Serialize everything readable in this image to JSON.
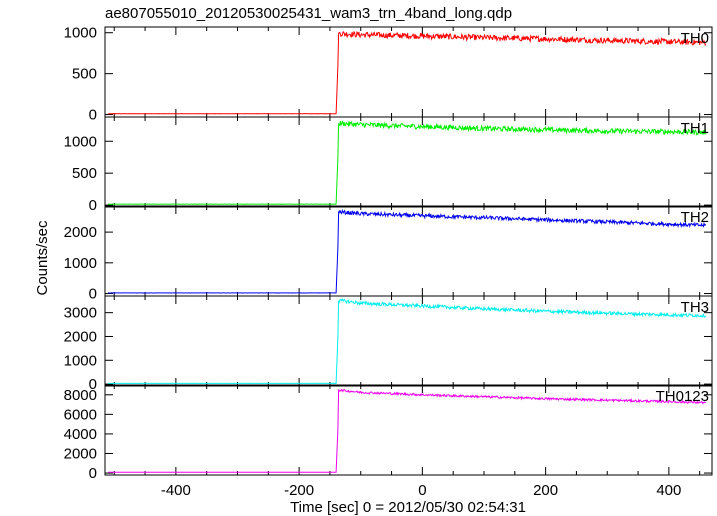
{
  "chart_data": {
    "type": "line",
    "title": "ae807055010_20120530025431_wam3_trn_4band_long.qdp",
    "xlabel": "Time [sec] 0 = 2012/05/30 02:54:31",
    "ylabel": "Counts/sec",
    "xlim": [
      -515,
      470
    ],
    "xticks": [
      -400,
      -200,
      0,
      200,
      400
    ],
    "grid": false,
    "series": [
      {
        "name": "TH0",
        "color": "#ff0000",
        "ylim": [
          -30,
          1070
        ],
        "yticks": [
          0,
          500,
          1000
        ],
        "x": [
          -510,
          -300,
          -140,
          -137,
          -136,
          -130,
          -100,
          0,
          100,
          200,
          300,
          400,
          460
        ],
        "y": [
          10,
          10,
          10,
          600,
          990,
          990,
          975,
          960,
          940,
          925,
          905,
          890,
          880
        ],
        "noise": 35
      },
      {
        "name": "TH1",
        "color": "#00ee00",
        "ylim": [
          -30,
          1380
        ],
        "yticks": [
          0,
          500,
          1000
        ],
        "x": [
          -510,
          -300,
          -140,
          -137,
          -136,
          -130,
          -100,
          0,
          100,
          200,
          300,
          400,
          460
        ],
        "y": [
          15,
          15,
          15,
          750,
          1280,
          1280,
          1260,
          1230,
          1200,
          1180,
          1160,
          1150,
          1140
        ],
        "noise": 40
      },
      {
        "name": "TH2",
        "color": "#0000ee",
        "ylim": [
          -80,
          2850
        ],
        "yticks": [
          0,
          1000,
          2000
        ],
        "x": [
          -510,
          -300,
          -140,
          -137,
          -136,
          -130,
          -100,
          0,
          100,
          200,
          300,
          400,
          460
        ],
        "y": [
          20,
          20,
          20,
          1500,
          2650,
          2650,
          2600,
          2530,
          2470,
          2400,
          2330,
          2260,
          2220
        ],
        "noise": 60
      },
      {
        "name": "TH3",
        "color": "#00eeee",
        "ylim": [
          -80,
          3700
        ],
        "yticks": [
          0,
          1000,
          2000,
          3000
        ],
        "x": [
          -510,
          -300,
          -140,
          -137,
          -136,
          -130,
          -100,
          0,
          100,
          200,
          300,
          400,
          460
        ],
        "y": [
          30,
          30,
          30,
          2000,
          3500,
          3500,
          3400,
          3280,
          3160,
          3060,
          2980,
          2910,
          2880
        ],
        "noise": 70
      },
      {
        "name": "TH0123",
        "color": "#ee00ee",
        "ylim": [
          -200,
          9000
        ],
        "yticks": [
          0,
          2000,
          4000,
          6000,
          8000
        ],
        "x": [
          -510,
          -300,
          -140,
          -137,
          -136,
          -130,
          -100,
          0,
          100,
          200,
          300,
          400,
          460
        ],
        "y": [
          80,
          80,
          80,
          4500,
          8450,
          8450,
          8250,
          8000,
          7800,
          7600,
          7450,
          7300,
          7200
        ],
        "noise": 110
      }
    ]
  }
}
